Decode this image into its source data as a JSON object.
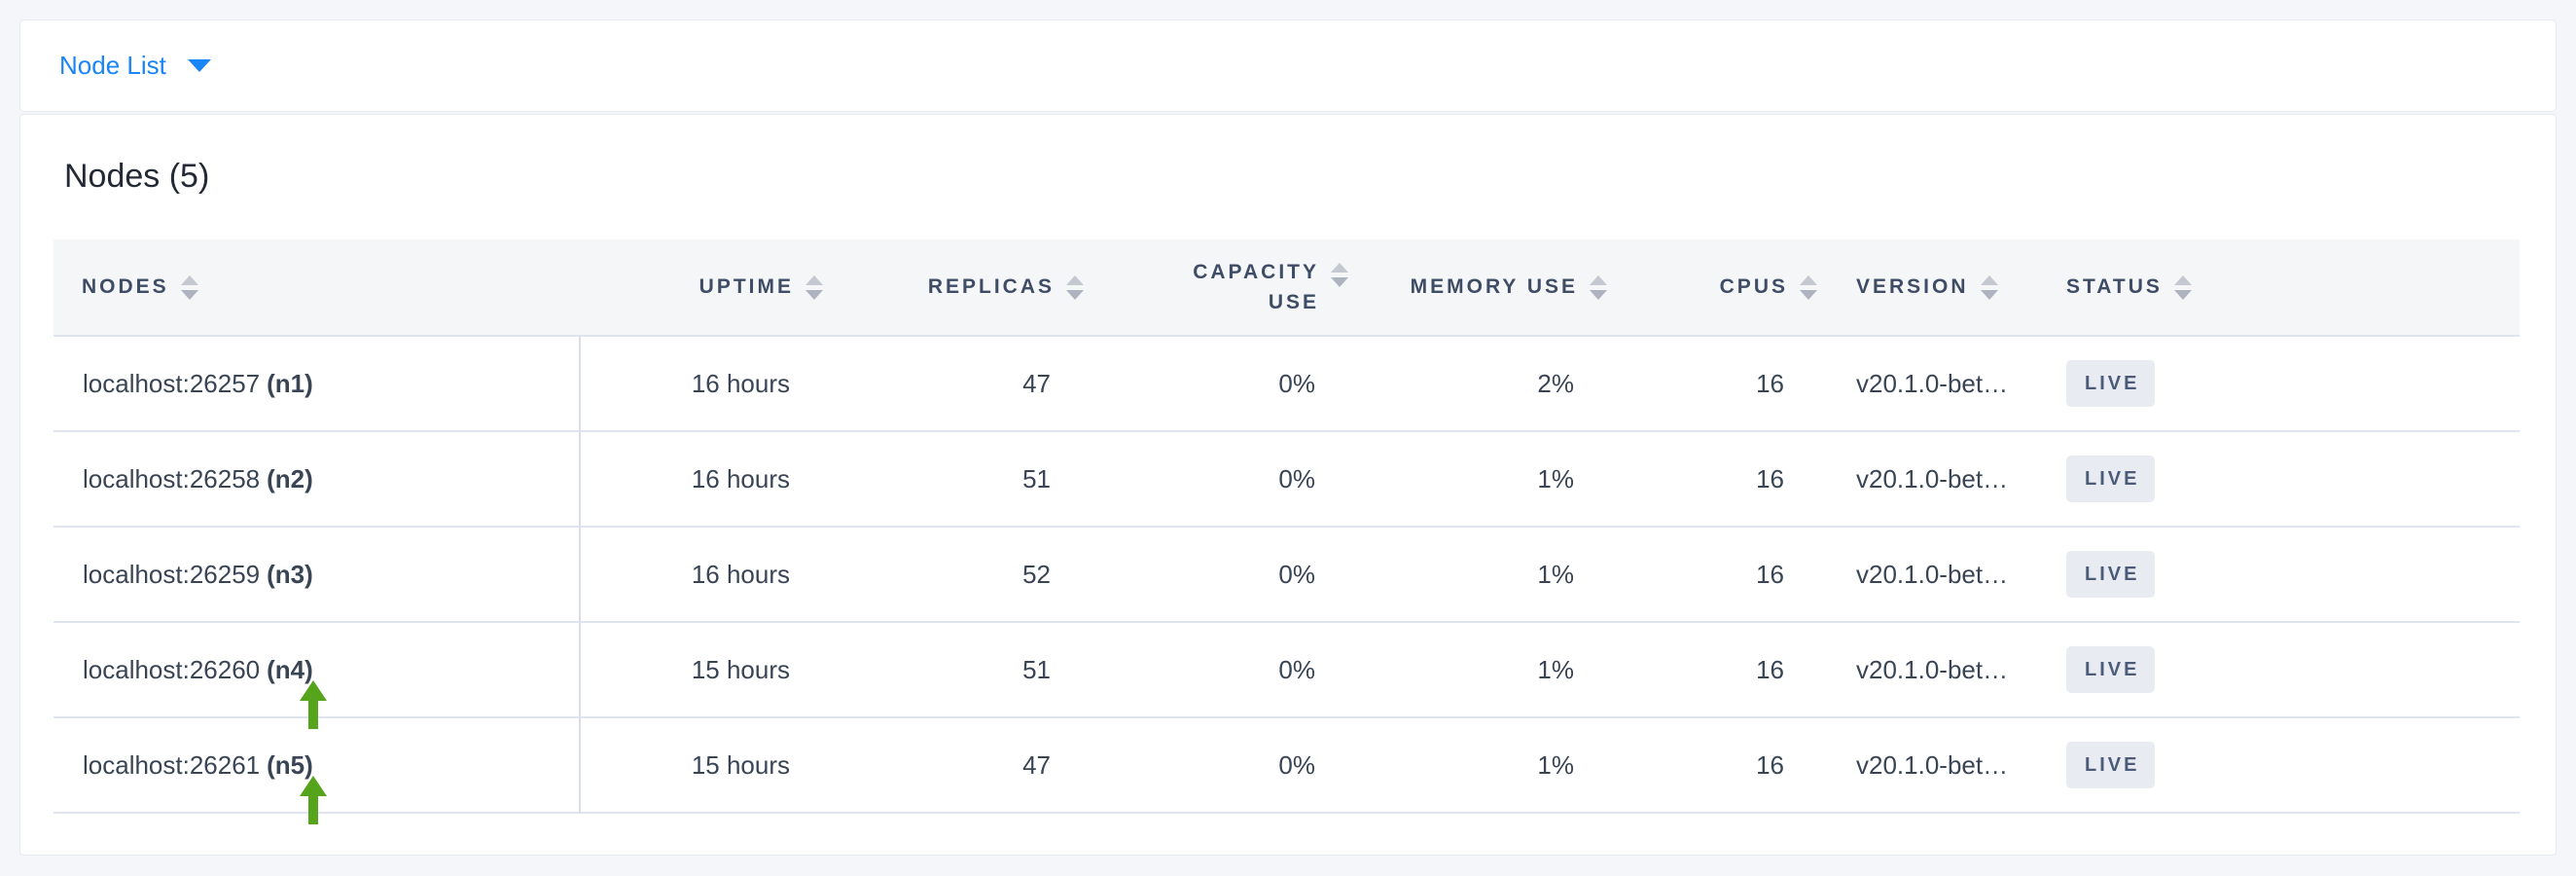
{
  "toolbar": {
    "view_selector_label": "Node List",
    "accent_color": "#1a85f6"
  },
  "main": {
    "title": "Nodes (5)",
    "table": {
      "columns": [
        {
          "key": "node",
          "label": "NODES",
          "align": "left"
        },
        {
          "key": "uptime",
          "label": "UPTIME",
          "align": "right"
        },
        {
          "key": "replicas",
          "label": "REPLICAS",
          "align": "right"
        },
        {
          "key": "capacity_use",
          "label": "CAPACITY USE",
          "align": "right"
        },
        {
          "key": "memory_use",
          "label": "MEMORY USE",
          "align": "right"
        },
        {
          "key": "cpus",
          "label": "CPUS",
          "align": "right"
        },
        {
          "key": "version",
          "label": "VERSION",
          "align": "left"
        },
        {
          "key": "status",
          "label": "STATUS",
          "align": "left"
        }
      ],
      "rows": [
        {
          "address": "localhost:26257",
          "id": "n1",
          "uptime": "16 hours",
          "replicas": "47",
          "capacity_use": "0%",
          "memory_use": "2%",
          "cpus": "16",
          "version": "v20.1.0-bet…",
          "status": "LIVE",
          "annotated": false
        },
        {
          "address": "localhost:26258",
          "id": "n2",
          "uptime": "16 hours",
          "replicas": "51",
          "capacity_use": "0%",
          "memory_use": "1%",
          "cpus": "16",
          "version": "v20.1.0-bet…",
          "status": "LIVE",
          "annotated": false
        },
        {
          "address": "localhost:26259",
          "id": "n3",
          "uptime": "16 hours",
          "replicas": "52",
          "capacity_use": "0%",
          "memory_use": "1%",
          "cpus": "16",
          "version": "v20.1.0-bet…",
          "status": "LIVE",
          "annotated": false
        },
        {
          "address": "localhost:26260",
          "id": "n4",
          "uptime": "15 hours",
          "replicas": "51",
          "capacity_use": "0%",
          "memory_use": "1%",
          "cpus": "16",
          "version": "v20.1.0-bet…",
          "status": "LIVE",
          "annotated": true
        },
        {
          "address": "localhost:26261",
          "id": "n5",
          "uptime": "15 hours",
          "replicas": "47",
          "capacity_use": "0%",
          "memory_use": "1%",
          "cpus": "16",
          "version": "v20.1.0-bet…",
          "status": "LIVE",
          "annotated": true
        }
      ],
      "status_badge": {
        "background": "#e8ecf2",
        "text_color": "#4c5b77"
      }
    }
  },
  "annotations": {
    "arrow_color": "#56a41c",
    "arrow_targets": [
      "n4",
      "n5"
    ]
  },
  "colors": {
    "page_background": "#f4f6fa",
    "panel_background": "#ffffff",
    "header_background": "#f5f6f8",
    "header_text": "#3e4c66",
    "cell_text": "#394455",
    "row_border": "#dfe4ee"
  }
}
